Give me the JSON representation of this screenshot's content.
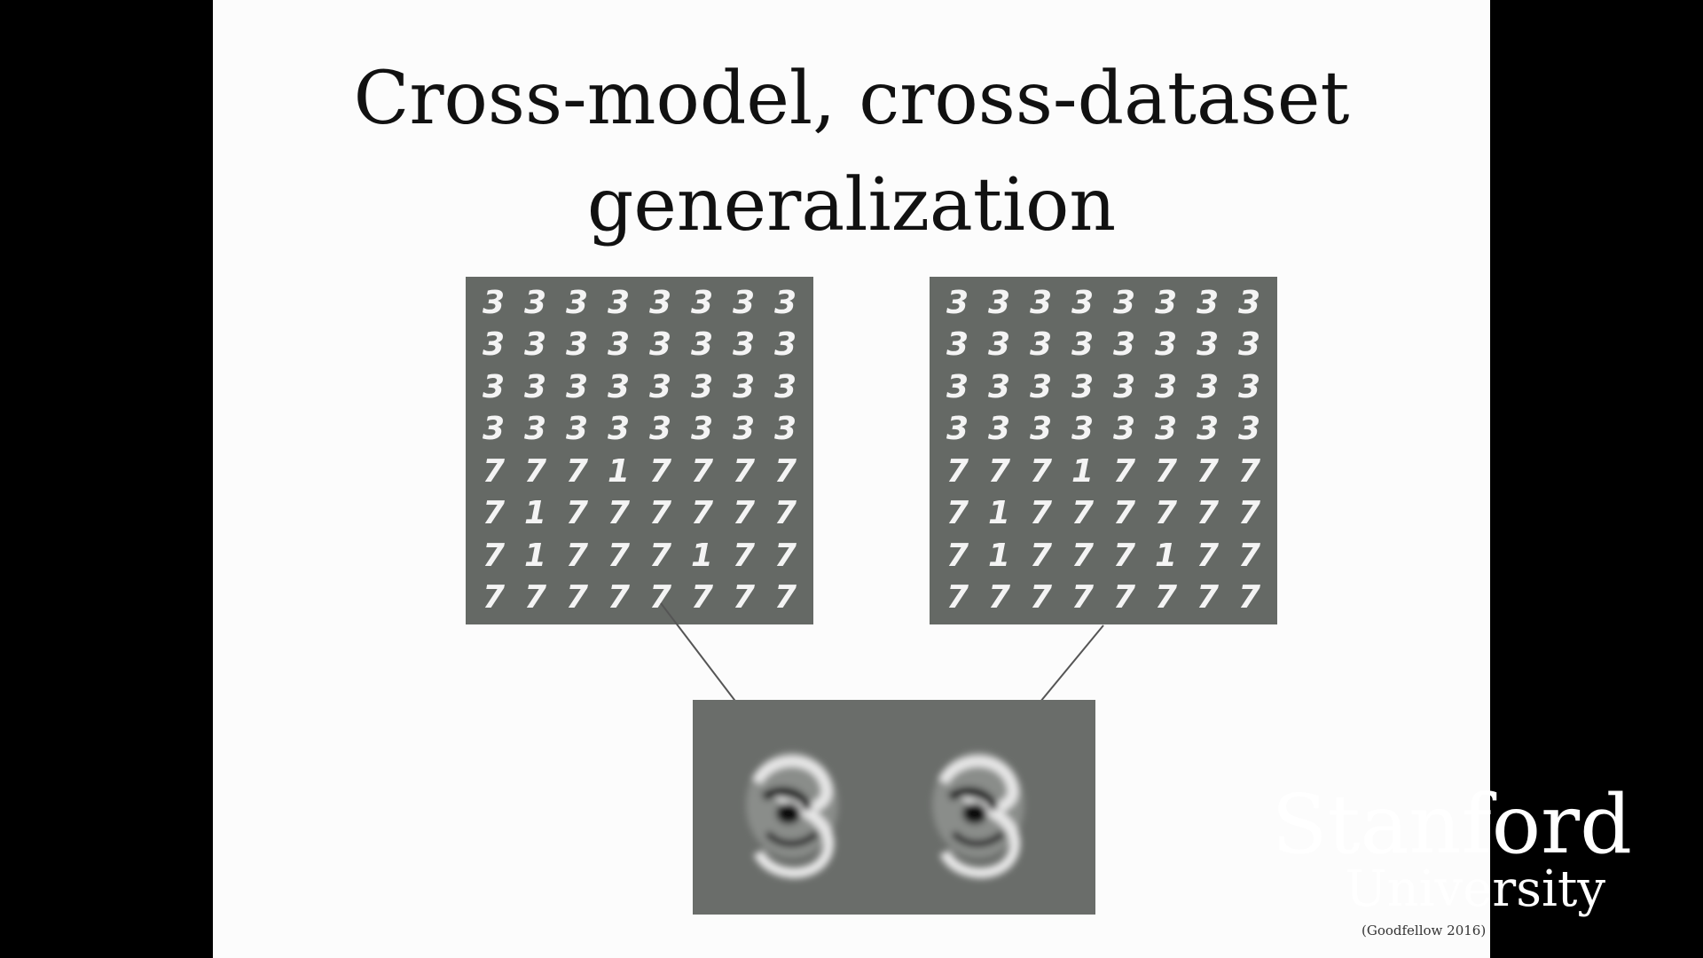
{
  "slide": {
    "title_line1": "Cross-model, cross-dataset",
    "title_line2": "generalization",
    "citation": "(Goodfellow 2016)"
  },
  "figure": {
    "left_grid_digits": [
      [
        "3",
        "3",
        "3",
        "3",
        "3",
        "3",
        "3",
        "3"
      ],
      [
        "3",
        "3",
        "3",
        "3",
        "3",
        "3",
        "3",
        "3"
      ],
      [
        "3",
        "3",
        "3",
        "3",
        "3",
        "3",
        "3",
        "3"
      ],
      [
        "3",
        "3",
        "3",
        "3",
        "3",
        "3",
        "3",
        "3"
      ],
      [
        "7",
        "7",
        "7",
        "1",
        "7",
        "7",
        "7",
        "7"
      ],
      [
        "7",
        "1",
        "7",
        "7",
        "7",
        "7",
        "7",
        "7"
      ],
      [
        "7",
        "1",
        "7",
        "7",
        "7",
        "1",
        "7",
        "7"
      ],
      [
        "7",
        "7",
        "7",
        "7",
        "7",
        "7",
        "7",
        "7"
      ]
    ],
    "right_grid_digits": [
      [
        "3",
        "3",
        "3",
        "3",
        "3",
        "3",
        "3",
        "3"
      ],
      [
        "3",
        "3",
        "3",
        "3",
        "3",
        "3",
        "3",
        "3"
      ],
      [
        "3",
        "3",
        "3",
        "3",
        "3",
        "3",
        "3",
        "3"
      ],
      [
        "3",
        "3",
        "3",
        "3",
        "3",
        "3",
        "3",
        "3"
      ],
      [
        "7",
        "7",
        "7",
        "1",
        "7",
        "7",
        "7",
        "7"
      ],
      [
        "7",
        "1",
        "7",
        "7",
        "7",
        "7",
        "7",
        "7"
      ],
      [
        "7",
        "1",
        "7",
        "7",
        "7",
        "1",
        "7",
        "7"
      ],
      [
        "7",
        "7",
        "7",
        "7",
        "7",
        "7",
        "7",
        "7"
      ]
    ],
    "grid_background": "#656965",
    "panel_background": "#6a6d6a",
    "arrow_color": "#555555"
  },
  "watermark": {
    "line1": "Stanford",
    "line2": "University"
  }
}
